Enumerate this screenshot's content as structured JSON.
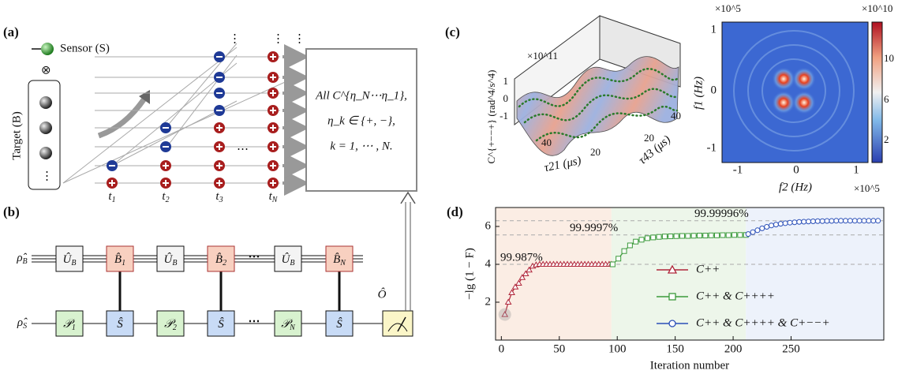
{
  "panel_a": {
    "label": "(a)",
    "sensor": "Sensor (S)",
    "tensor": "⊗",
    "target": "Target (B)",
    "dots": "⋮",
    "times": [
      {
        "base": "t",
        "sub": "1"
      },
      {
        "base": "t",
        "sub": "2"
      },
      {
        "base": "t",
        "sub": "3"
      },
      {
        "base": "t",
        "sub": "N"
      }
    ],
    "ellipsis": "⋯",
    "box_lines": [
      "All C^{η_N⋯η_1},",
      "η_k ∈ {+, −},",
      "k = 1, ⋯ , N."
    ]
  },
  "panel_b": {
    "label": "(b)",
    "rho_b": {
      "base": "ρ̂",
      "sub": "B"
    },
    "rho_s": {
      "base": "ρ̂",
      "sub": "S"
    },
    "b_gates": [
      {
        "base": "Û",
        "sub": "B"
      },
      {
        "base": "B̂",
        "sub": "1"
      },
      {
        "base": "Û",
        "sub": "B"
      },
      {
        "base": "B̂",
        "sub": "2"
      },
      {
        "base": "Û",
        "sub": "B"
      },
      {
        "base": "B̂",
        "sub": "N"
      }
    ],
    "s_gates": [
      {
        "base": "𝒫",
        "sub": "1"
      },
      {
        "base": "Ŝ",
        "sub": ""
      },
      {
        "base": "𝒫",
        "sub": "2"
      },
      {
        "base": "Ŝ",
        "sub": ""
      },
      {
        "base": "𝒫",
        "sub": "N"
      },
      {
        "base": "Ŝ",
        "sub": ""
      }
    ],
    "dots": "⋯",
    "observable": "Ô"
  },
  "panel_c": {
    "label": "(c)",
    "surface_scale": "×10^11",
    "surface_zlabel": "C^{+−−+} (rad^4/s^4)",
    "surface_zticks": [
      "1",
      "0",
      "-1"
    ],
    "surface_xticks": [
      "40",
      "20"
    ],
    "surface_xlabel": "τ21 (μs)",
    "surface_yticks": [
      "20",
      "40"
    ],
    "surface_ylabel": "τ43 (μs)",
    "map_yscale": "×10^5",
    "map_xscale": "×10^5",
    "map_yticks": [
      "1",
      "0",
      "-1"
    ],
    "map_xticks": [
      "-1",
      "0",
      "1"
    ],
    "map_ylabel": "f1 (Hz)",
    "map_xlabel": "f2 (Hz)",
    "colorbar_scale": "×10^10",
    "colorbar_ticks": [
      "10",
      "6",
      "2"
    ]
  },
  "chart_data": {
    "type": "line",
    "label": "(d)",
    "xlabel": "Iteration number",
    "ylabel": "−lg (1 − F)",
    "xlim": [
      -5,
      330
    ],
    "ylim": [
      0,
      7
    ],
    "xticks": [
      0,
      50,
      100,
      150,
      200,
      250
    ],
    "yticks": [
      2,
      4,
      6
    ],
    "legend": "lower right",
    "regions": [
      {
        "x": [
          -5,
          95
        ],
        "color": "#fbede4"
      },
      {
        "x": [
          95,
          211
        ],
        "color": "#edf6ea"
      },
      {
        "x": [
          211,
          330
        ],
        "color": "#edf2fb"
      }
    ],
    "annotations": [
      {
        "text": "99.987%",
        "y": 4.0
      },
      {
        "text": "99.9997%",
        "y": 5.55
      },
      {
        "text": "99.99996%",
        "y": 6.3
      }
    ],
    "series": [
      {
        "name": "C++",
        "color": "#b0263a",
        "marker": "triangle",
        "x": [
          3,
          6,
          9,
          12,
          15,
          18,
          21,
          24,
          27,
          30,
          33,
          36,
          39,
          42,
          45,
          48,
          51,
          54,
          57,
          60,
          63,
          66,
          69,
          72,
          75,
          78,
          81,
          84,
          87,
          90,
          93,
          95
        ],
        "values": [
          1.35,
          2.0,
          2.5,
          2.8,
          3.0,
          3.3,
          3.5,
          3.7,
          3.9,
          3.97,
          4.0,
          4.0,
          4.0,
          4.0,
          4.0,
          4.0,
          4.0,
          4.0,
          4.0,
          4.0,
          4.0,
          4.0,
          4.0,
          4.0,
          4.0,
          4.0,
          4.0,
          4.0,
          4.0,
          4.0,
          4.0,
          4.0
        ]
      },
      {
        "name": "C++ & C++++",
        "color": "#3b9a3b",
        "marker": "square",
        "x": [
          96,
          101,
          106,
          111,
          116,
          121,
          126,
          131,
          136,
          141,
          146,
          151,
          156,
          161,
          166,
          171,
          176,
          181,
          186,
          191,
          196,
          201,
          206,
          211
        ],
        "values": [
          4.0,
          4.3,
          4.7,
          5.0,
          5.2,
          5.3,
          5.38,
          5.42,
          5.45,
          5.47,
          5.48,
          5.49,
          5.5,
          5.5,
          5.51,
          5.52,
          5.52,
          5.53,
          5.53,
          5.54,
          5.54,
          5.55,
          5.55,
          5.55
        ]
      },
      {
        "name": "C++ & C++++ & C+−−+",
        "color": "#2a4fb8",
        "marker": "circle",
        "x": [
          213,
          217,
          221,
          225,
          229,
          233,
          237,
          241,
          245,
          249,
          253,
          257,
          261,
          265,
          269,
          273,
          277,
          281,
          285,
          289,
          293,
          297,
          301,
          305,
          309,
          313,
          317,
          321,
          325
        ],
        "values": [
          5.6,
          5.7,
          5.8,
          5.9,
          5.98,
          6.05,
          6.1,
          6.14,
          6.17,
          6.2,
          6.22,
          6.24,
          6.25,
          6.26,
          6.27,
          6.28,
          6.28,
          6.29,
          6.29,
          6.3,
          6.3,
          6.3,
          6.3,
          6.3,
          6.3,
          6.3,
          6.3,
          6.3,
          6.3
        ]
      }
    ]
  }
}
